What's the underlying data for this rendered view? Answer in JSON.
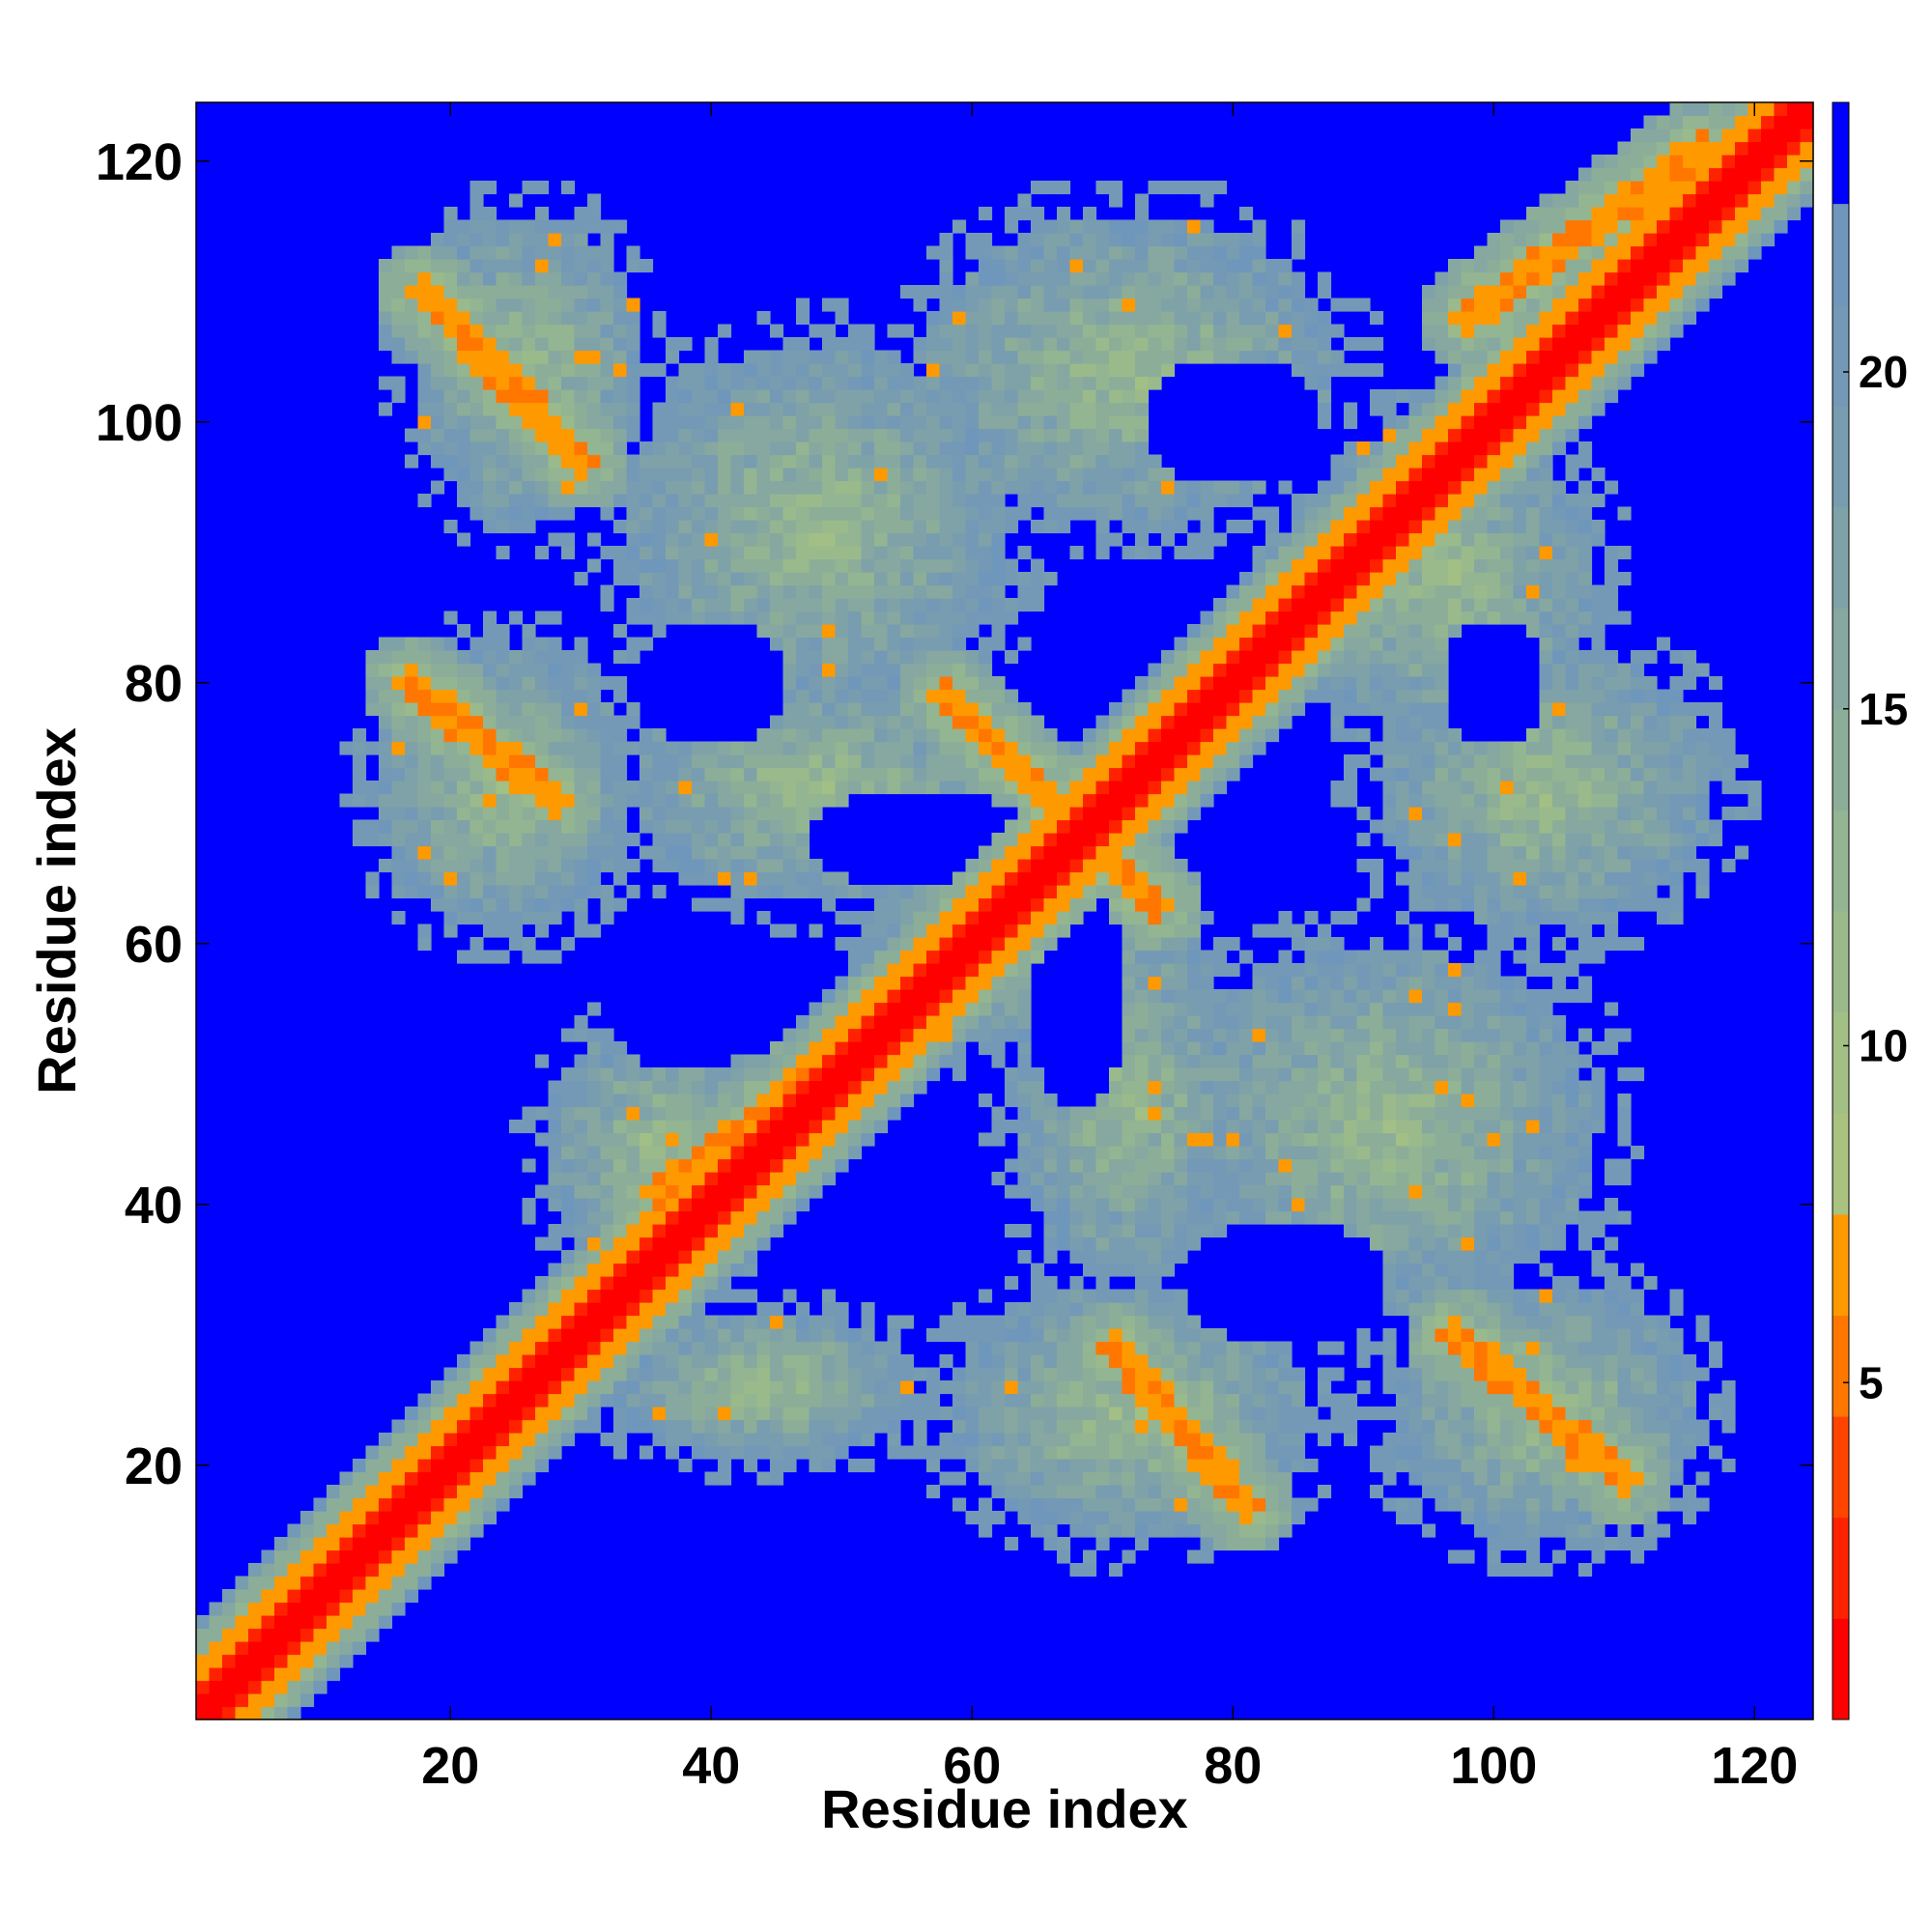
{
  "chart_data": {
    "type": "heatmap",
    "title": "",
    "xlabel": "Residue index",
    "ylabel": "Residue index",
    "n_residues": 124,
    "xlim": [
      1,
      124
    ],
    "ylim": [
      1,
      124
    ],
    "x_ticks": [
      20,
      40,
      60,
      80,
      100,
      120
    ],
    "y_ticks": [
      20,
      40,
      60,
      80,
      100,
      120
    ],
    "colorbar": {
      "ticks": [
        5,
        10,
        15,
        20
      ],
      "range": [
        0,
        24
      ],
      "levels": [
        {
          "from": 0,
          "to": 1.5,
          "color": "#ff0000"
        },
        {
          "from": 1.5,
          "to": 3,
          "color": "#ff2200"
        },
        {
          "from": 3,
          "to": 4.5,
          "color": "#ff4400"
        },
        {
          "from": 4.5,
          "to": 6,
          "color": "#ff7700"
        },
        {
          "from": 6,
          "to": 7.5,
          "color": "#ff9900"
        },
        {
          "from": 7.5,
          "to": 9,
          "color": "#a9c27f"
        },
        {
          "from": 9,
          "to": 10.5,
          "color": "#a2bf86"
        },
        {
          "from": 10.5,
          "to": 12,
          "color": "#9aba8c"
        },
        {
          "from": 12,
          "to": 13.5,
          "color": "#93b592"
        },
        {
          "from": 13.5,
          "to": 15,
          "color": "#8cae98"
        },
        {
          "from": 15,
          "to": 16.5,
          "color": "#86a8a0"
        },
        {
          "from": 16.5,
          "to": 18,
          "color": "#7fa2a8"
        },
        {
          "from": 18,
          "to": 19.5,
          "color": "#789cb0"
        },
        {
          "from": 19.5,
          "to": 21,
          "color": "#7399b6"
        },
        {
          "from": 21,
          "to": 22.5,
          "color": "#6f96bb"
        },
        {
          "from": 22.5,
          "to": 24,
          "color": "#0000ff"
        }
      ],
      "background_color": "#0000ff"
    },
    "matrix_description": "Pairwise residue distance map; diagonal ~0 (red), background >22.5 (blue)",
    "contact_bands": [
      {
        "from": [
          18,
          110
        ],
        "to": [
          30,
          97
        ]
      },
      {
        "from": [
          17,
          80
        ],
        "to": [
          28,
          71
        ]
      },
      {
        "from": [
          58,
          79
        ],
        "to": [
          74,
          63
        ]
      },
      {
        "from": [
          71,
          29
        ],
        "to": [
          81,
          17
        ]
      },
      {
        "from": [
          97,
          30
        ],
        "to": [
          110,
          19
        ]
      },
      {
        "from": [
          36,
          41
        ],
        "to": [
          58,
          57
        ]
      },
      {
        "from": [
          79,
          80
        ],
        "to": [
          95,
          94
        ]
      },
      {
        "from": [
          98,
          108
        ],
        "to": [
          116,
          121
        ]
      }
    ],
    "blobs": [
      {
        "cx": 26,
        "cy": 104,
        "rx": 9,
        "ry": 12
      },
      {
        "cx": 24,
        "cy": 72,
        "rx": 10,
        "ry": 11
      },
      {
        "cx": 48,
        "cy": 92,
        "rx": 15,
        "ry": 14
      },
      {
        "cx": 72,
        "cy": 104,
        "rx": 16,
        "ry": 12
      },
      {
        "cx": 104,
        "cy": 72,
        "rx": 13,
        "ry": 11
      },
      {
        "cx": 92,
        "cy": 46,
        "rx": 16,
        "ry": 14
      },
      {
        "cx": 72,
        "cy": 24,
        "rx": 14,
        "ry": 10
      },
      {
        "cx": 104,
        "cy": 24,
        "rx": 12,
        "ry": 10
      },
      {
        "cx": 48,
        "cy": 72,
        "rx": 14,
        "ry": 9
      },
      {
        "cx": 72,
        "cy": 48,
        "rx": 9,
        "ry": 14
      },
      {
        "cx": 36,
        "cy": 44,
        "rx": 9,
        "ry": 10
      },
      {
        "cx": 44,
        "cy": 26,
        "rx": 12,
        "ry": 6
      },
      {
        "cx": 96,
        "cy": 88,
        "rx": 12,
        "ry": 12
      },
      {
        "cx": 62,
        "cy": 62,
        "rx": 10,
        "ry": 10
      }
    ],
    "holes": [
      {
        "cx": 40,
        "cy": 80,
        "rx": 6,
        "ry": 5
      },
      {
        "cx": 56,
        "cy": 68,
        "rx": 9,
        "ry": 4
      },
      {
        "cx": 38,
        "cy": 56,
        "rx": 6,
        "ry": 6
      },
      {
        "cx": 80,
        "cy": 100,
        "rx": 7,
        "ry": 5
      },
      {
        "cx": 68,
        "cy": 56,
        "rx": 4,
        "ry": 9
      },
      {
        "cx": 84,
        "cy": 34,
        "rx": 8,
        "ry": 5
      },
      {
        "cx": 100,
        "cy": 80,
        "rx": 4,
        "ry": 5
      },
      {
        "cx": 84,
        "cy": 68,
        "rx": 6,
        "ry": 4
      }
    ]
  }
}
